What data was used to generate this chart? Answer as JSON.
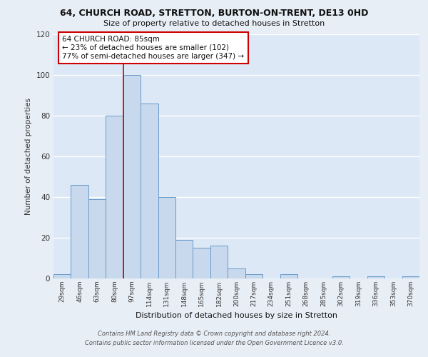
{
  "title_line1": "64, CHURCH ROAD, STRETTON, BURTON-ON-TRENT, DE13 0HD",
  "title_line2": "Size of property relative to detached houses in Stretton",
  "xlabel": "Distribution of detached houses by size in Stretton",
  "ylabel": "Number of detached properties",
  "categories": [
    "29sqm",
    "46sqm",
    "63sqm",
    "80sqm",
    "97sqm",
    "114sqm",
    "131sqm",
    "148sqm",
    "165sqm",
    "182sqm",
    "200sqm",
    "217sqm",
    "234sqm",
    "251sqm",
    "268sqm",
    "285sqm",
    "302sqm",
    "319sqm",
    "336sqm",
    "353sqm",
    "370sqm"
  ],
  "values": [
    2,
    46,
    39,
    80,
    100,
    86,
    40,
    19,
    15,
    16,
    5,
    2,
    0,
    2,
    0,
    0,
    1,
    0,
    1,
    0,
    1
  ],
  "bar_color": "#c9d9ed",
  "bar_edge_color": "#6699cc",
  "red_line_x": 3.5,
  "annotation_title": "64 CHURCH ROAD: 85sqm",
  "annotation_line1": "← 23% of detached houses are smaller (102)",
  "annotation_line2": "77% of semi-detached houses are larger (347) →",
  "annotation_box_color": "#ffffff",
  "annotation_box_edge_color": "#cc0000",
  "ylim": [
    0,
    120
  ],
  "yticks": [
    0,
    20,
    40,
    60,
    80,
    100,
    120
  ],
  "background_color": "#dce8f5",
  "grid_color": "#ffffff",
  "footer_line1": "Contains HM Land Registry data © Crown copyright and database right 2024.",
  "footer_line2": "Contains public sector information licensed under the Open Government Licence v3.0."
}
